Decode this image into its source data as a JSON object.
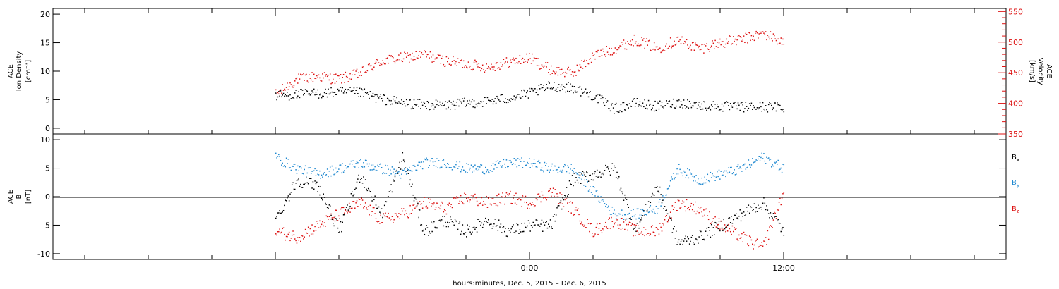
{
  "chart_data": [
    {
      "type": "scatter",
      "ylabel_left": [
        "ACE",
        "Ion Density",
        "[cm⁻³]"
      ],
      "ylabel_right": [
        "ACE",
        "Velocity",
        "[km/s]"
      ],
      "ylim_left": [
        -1,
        21
      ],
      "ylim_right": [
        350,
        555
      ],
      "yticks_left": [
        0,
        5,
        10,
        15,
        20
      ],
      "yticks_right": [
        350,
        400,
        450,
        500,
        550
      ],
      "colors": {
        "density": "#000000",
        "velocity": "#dd1111"
      },
      "series": [
        {
          "axis": "left",
          "hours": [
            -12,
            -11,
            -10,
            -9,
            -8,
            -7,
            -6,
            -5,
            -4,
            -3,
            -2,
            -1,
            0,
            1,
            2,
            3,
            4,
            5,
            6,
            7,
            8,
            9,
            10,
            11,
            12
          ],
          "values": [
            5.8,
            6.0,
            6.2,
            6.4,
            6.3,
            5.2,
            4.5,
            4.2,
            4.1,
            4.5,
            4.8,
            5.4,
            6.2,
            7.5,
            7.2,
            5.8,
            3.5,
            4.5,
            3.9,
            4.6,
            4.1,
            3.9,
            3.8,
            3.8,
            3.8
          ]
        },
        {
          "axis": "right",
          "hours": [
            -12,
            -11,
            -10,
            -9,
            -8,
            -7,
            -6,
            -5,
            -4,
            -3,
            -2,
            -1,
            0,
            1,
            2,
            3,
            4,
            5,
            6,
            7,
            8,
            9,
            10,
            11,
            12
          ],
          "values": [
            415,
            440,
            445,
            440,
            450,
            470,
            475,
            480,
            470,
            465,
            460,
            468,
            475,
            455,
            450,
            478,
            490,
            505,
            490,
            505,
            490,
            500,
            505,
            515,
            500
          ]
        }
      ]
    },
    {
      "type": "scatter",
      "ylabel": [
        "ACE",
        "B",
        "[nT]"
      ],
      "ylim": [
        -11,
        11
      ],
      "yticks": [
        -10,
        -5,
        0,
        5,
        10
      ],
      "legend": [
        {
          "label": "B",
          "sub": "x",
          "color": "#000000"
        },
        {
          "label": "B",
          "sub": "y",
          "color": "#1e88d0"
        },
        {
          "label": "B",
          "sub": "z",
          "color": "#dd1111"
        }
      ],
      "series": [
        {
          "hours": [
            -12,
            -11,
            -10,
            -9,
            -8,
            -7,
            -6,
            -5,
            -4,
            -3,
            -2,
            -1,
            0,
            1,
            2,
            3,
            4,
            5,
            6,
            7,
            8,
            9,
            10,
            11,
            12
          ],
          "values": [
            -4,
            3,
            2,
            -6,
            4,
            -3,
            7,
            -6,
            -4,
            -6,
            -4,
            -6,
            -5,
            -5,
            3,
            4,
            5,
            -6,
            2,
            -8,
            -7,
            -5,
            -3,
            -1,
            -6
          ]
        },
        {
          "hours": [
            -12,
            -11,
            -10,
            -9,
            -8,
            -7,
            -6,
            -5,
            -4,
            -3,
            -2,
            -1,
            0,
            1,
            2,
            3,
            4,
            5,
            6,
            7,
            8,
            9,
            10,
            11,
            12
          ],
          "values": [
            7,
            5,
            4,
            5,
            6,
            5,
            4,
            6,
            6,
            5,
            5,
            6,
            6,
            5,
            5,
            1,
            -3,
            -3,
            -2,
            5,
            3,
            4,
            5,
            7,
            5
          ]
        },
        {
          "hours": [
            -12,
            -11,
            -10,
            -9,
            -8,
            -7,
            -6,
            -5,
            -4,
            -3,
            -2,
            -1,
            0,
            1,
            2,
            3,
            4,
            5,
            6,
            7,
            8,
            9,
            10,
            11,
            12
          ],
          "values": [
            -6,
            -7,
            -5,
            -3,
            -1,
            -4,
            -3,
            -1,
            -2,
            0,
            -1,
            0,
            -1,
            1,
            -2,
            -6,
            -4,
            -6,
            -6,
            -1,
            -2,
            -5,
            -7,
            -9,
            1
          ]
        }
      ]
    }
  ],
  "x_axis": {
    "label": "hours:minutes, Dec.  5, 2015 – Dec.  6, 2015",
    "xlim": [
      -22.5,
      22.5
    ],
    "tick_labels": [
      {
        "h": 0,
        "label": "0:00"
      },
      {
        "h": 12,
        "label": "12:00"
      }
    ]
  }
}
